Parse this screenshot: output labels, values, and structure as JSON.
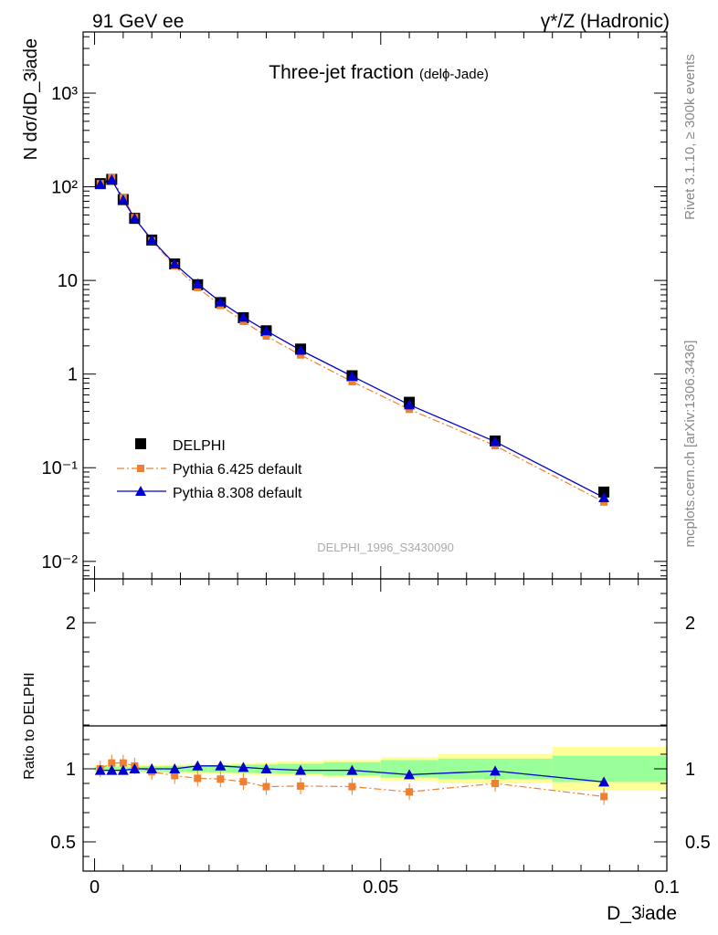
{
  "header": {
    "left": "91 GeV ee",
    "right": "γ*/Z (Hadronic)"
  },
  "side_text": {
    "rivet": "Rivet 3.1.10, ≥ 300k events",
    "mcplots": "mcplots.cern.ch [arXiv:1306.3436]"
  },
  "chart_data": [
    {
      "type": "line",
      "title": "Three-jet fraction",
      "subtitle": "(delϕ-Jade)",
      "ylabel": "N dσ/dD_3ʲade",
      "xlabel": "D_3ʲade",
      "yscale": "log",
      "ylim": [
        0.0065,
        4500
      ],
      "xlim": [
        -0.002,
        0.1
      ],
      "watermark": "DELPHI_1996_S3430090",
      "y_tick_labels": [
        "10⁻²",
        "10⁻¹",
        "1",
        "10",
        "10²",
        "10³"
      ],
      "x": [
        0.001,
        0.003,
        0.005,
        0.007,
        0.01,
        0.014,
        0.018,
        0.022,
        0.026,
        0.03,
        0.036,
        0.045,
        0.055,
        0.07,
        0.089
      ],
      "series": [
        {
          "name": "DELPHI",
          "color": "#000000",
          "marker": "square",
          "values": [
            108,
            120,
            73,
            46,
            27,
            15,
            9.0,
            5.8,
            4.0,
            2.9,
            1.85,
            0.96,
            0.5,
            0.193,
            0.055
          ]
        },
        {
          "name": "Pythia 6.425 default",
          "color": "#f08030",
          "marker": "square-small",
          "linestyle": "dashdot",
          "values": [
            108,
            125,
            76,
            47,
            26.5,
            14.3,
            8.4,
            5.4,
            3.65,
            2.55,
            1.6,
            0.83,
            0.42,
            0.172,
            0.043
          ]
        },
        {
          "name": "Pythia 8.308 default",
          "color": "#0000cc",
          "marker": "triangle",
          "values": [
            106,
            119,
            72.5,
            46,
            27.2,
            15,
            9.2,
            5.9,
            4.05,
            2.9,
            1.8,
            0.95,
            0.47,
            0.19,
            0.048
          ]
        }
      ]
    },
    {
      "type": "line",
      "ylabel": "Ratio to DELPHI",
      "xlabel": "D_3ʲade",
      "ylim": [
        0.3,
        2.3
      ],
      "xlim": [
        -0.002,
        0.1
      ],
      "y_ticks": [
        0.5,
        1,
        2
      ],
      "y_tick_labels": [
        "0.5",
        "1",
        "2"
      ],
      "x_ticks": [
        0,
        0.05,
        0.1
      ],
      "x_tick_labels": [
        "0",
        "0.05",
        "0.1"
      ],
      "x": [
        0.001,
        0.003,
        0.005,
        0.007,
        0.01,
        0.014,
        0.018,
        0.022,
        0.026,
        0.03,
        0.036,
        0.045,
        0.055,
        0.07,
        0.089
      ],
      "bands": {
        "edges": [
          0,
          0.002,
          0.004,
          0.006,
          0.008,
          0.012,
          0.016,
          0.02,
          0.024,
          0.028,
          0.032,
          0.04,
          0.05,
          0.06,
          0.08,
          0.1
        ],
        "yellow_halfwidth": [
          0.025,
          0.025,
          0.025,
          0.025,
          0.028,
          0.03,
          0.032,
          0.035,
          0.04,
          0.045,
          0.05,
          0.06,
          0.08,
          0.1,
          0.15
        ],
        "green_halfwidth": [
          0.015,
          0.015,
          0.015,
          0.015,
          0.018,
          0.02,
          0.022,
          0.025,
          0.028,
          0.03,
          0.035,
          0.045,
          0.06,
          0.07,
          0.09
        ]
      },
      "series": [
        {
          "name": "Pythia 6.425 default",
          "color": "#f08030",
          "values": [
            1.0,
            1.04,
            1.04,
            1.02,
            0.98,
            0.953,
            0.935,
            0.93,
            0.912,
            0.878,
            0.882,
            0.878,
            0.842,
            0.9,
            0.81
          ]
        },
        {
          "name": "Pythia 8.308 default",
          "color": "#0000cc",
          "values": [
            0.99,
            0.99,
            0.99,
            1.0,
            1.0,
            1.0,
            1.02,
            1.02,
            1.01,
            1.0,
            0.99,
            0.99,
            0.96,
            0.985,
            0.91
          ]
        }
      ]
    }
  ]
}
